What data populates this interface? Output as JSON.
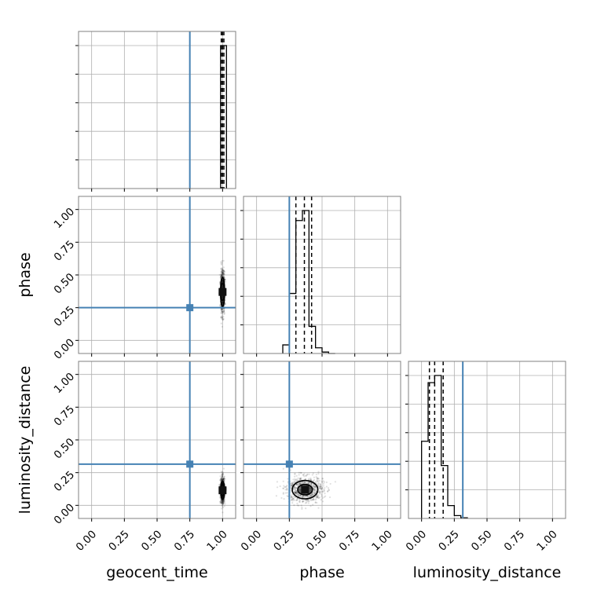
{
  "chart_data": {
    "type": "corner",
    "parameters": [
      "geocent_time",
      "phase",
      "luminosity_distance"
    ],
    "axis_range": [
      -0.1,
      1.1
    ],
    "ticks": [
      0.0,
      0.25,
      0.5,
      0.75,
      1.0
    ],
    "tick_labels": [
      "0.00",
      "0.25",
      "0.50",
      "0.75",
      "1.00"
    ],
    "grid": true,
    "colors": {
      "truth": "#4682b4",
      "posterior": "#000000",
      "grid": "#b0b0b0",
      "frame": "#808080"
    },
    "truths": {
      "geocent_time": 0.75,
      "phase": 0.25,
      "luminosity_distance": 0.315
    },
    "quantiles": {
      "geocent_time": [
        0.99,
        1.0,
        1.01
      ],
      "phase": [
        0.3,
        0.365,
        0.42
      ],
      "luminosity_distance": [
        0.06,
        0.1,
        0.165
      ]
    },
    "histograms": {
      "geocent_time": {
        "bin_edges": [
          0.985,
          1.03
        ],
        "heights": [
          1.0
        ]
      },
      "phase": {
        "bin_edges": [
          0.2,
          0.25,
          0.3,
          0.35,
          0.4,
          0.45,
          0.5,
          0.55,
          0.6
        ],
        "heights": [
          0.06,
          0.42,
          0.93,
          1.0,
          0.19,
          0.04,
          0.01,
          0.0
        ]
      },
      "luminosity_distance": {
        "bin_edges": [
          0.0,
          0.05,
          0.1,
          0.15,
          0.2,
          0.25,
          0.3,
          0.35
        ],
        "heights": [
          0.54,
          0.95,
          1.0,
          0.37,
          0.09,
          0.02,
          0.005
        ]
      }
    },
    "samples_summary": {
      "geocent_time_vs_phase": {
        "x_center": 1.0,
        "x_spread": 0.008,
        "y_center": 0.37,
        "y_spread": 0.08
      },
      "geocent_time_vs_luminosity_distance": {
        "x_center": 1.0,
        "x_spread": 0.008,
        "y_center": 0.115,
        "y_spread": 0.05
      },
      "phase_vs_luminosity_distance": {
        "x_center": 0.37,
        "x_spread": 0.07,
        "y_center": 0.12,
        "y_spread": 0.05
      }
    }
  }
}
